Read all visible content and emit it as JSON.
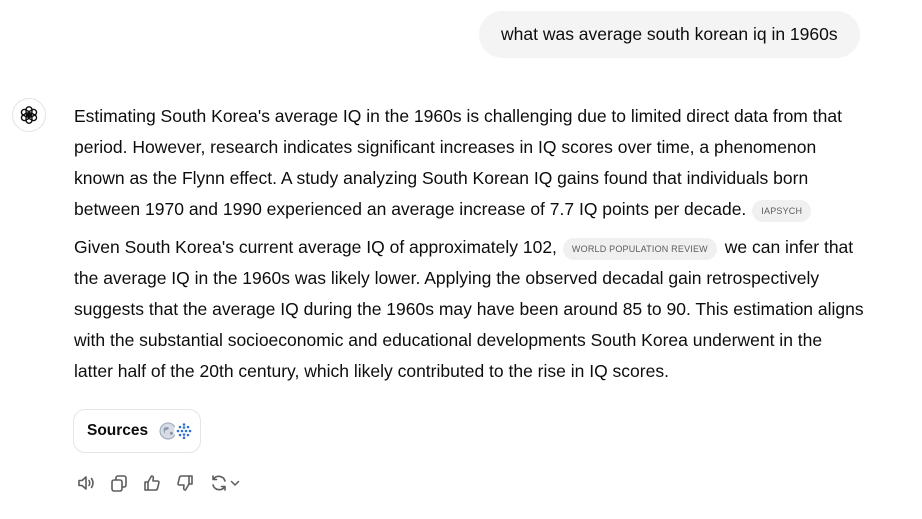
{
  "user_message": "what was average south korean iq in 1960s",
  "assistant": {
    "paragraphs": [
      {
        "text_before": "Estimating South Korea's average IQ in the 1960s is challenging due to limited direct data from that period. However, research indicates significant increases in IQ scores over time, a phenomenon known as the Flynn effect. A study analyzing South Korean IQ gains found that individuals born between 1970 and 1990 experienced an average increase of 7.7 IQ points per decade.",
        "citation": "IAPSYCH"
      },
      {
        "text_before": "Given South Korea's current average IQ of approximately 102,",
        "citation": "WORLD POPULATION REVIEW",
        "text_after": "we can infer that the average IQ in the 1960s was likely lower. Applying the observed decadal gain retrospectively suggests that the average IQ during the 1960s may have been around 85 to 90. This estimation aligns with the substantial socioeconomic and educational developments South Korea underwent in the latter half of the 20th century, which likely contributed to the rise in IQ scores."
      }
    ],
    "sources_label": "Sources"
  },
  "action_icons": [
    "read-aloud-icon",
    "copy-icon",
    "thumbs-up-icon",
    "thumbs-down-icon",
    "regenerate-icon"
  ]
}
